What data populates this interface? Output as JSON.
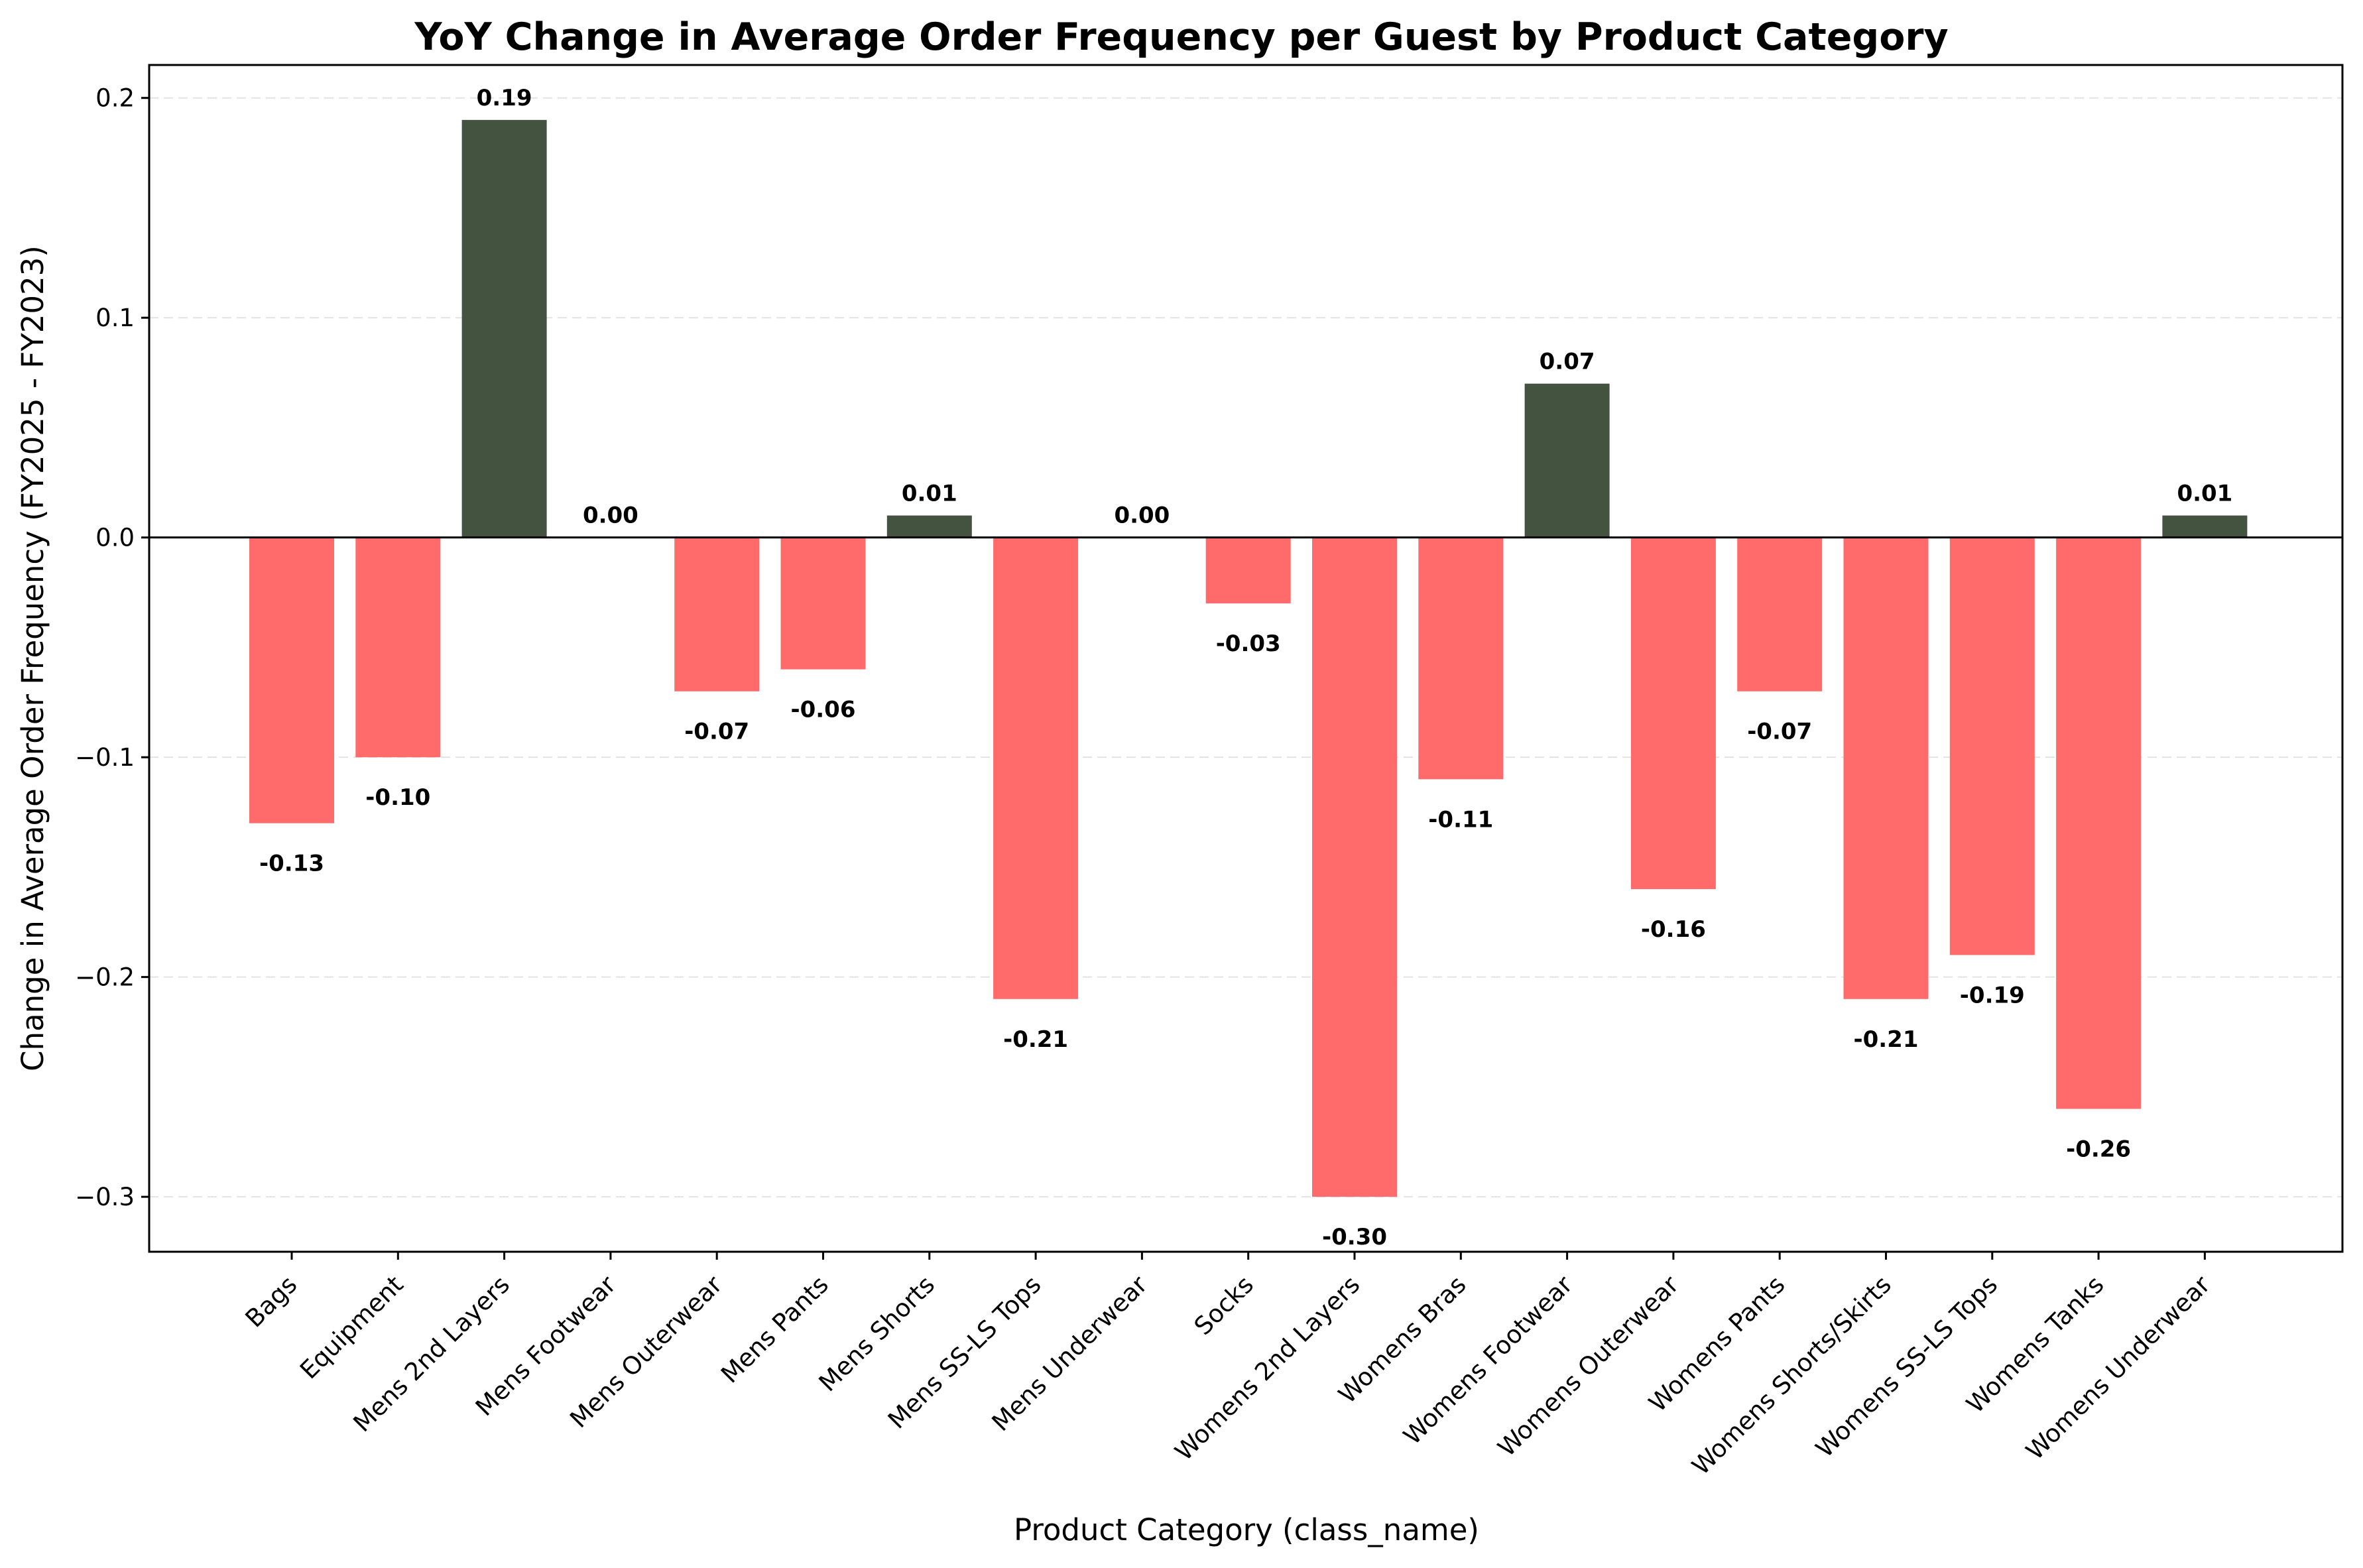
{
  "chart_data": {
    "type": "bar",
    "title": "YoY Change in Average Order Frequency per Guest by Product Category",
    "xlabel": "Product Category (class_name)",
    "ylabel": "Change in Average Order Frequency (FY2025 - FY2023)",
    "categories": [
      "Bags",
      "Equipment",
      "Mens 2nd Layers",
      "Mens Footwear",
      "Mens Outerwear",
      "Mens Pants",
      "Mens Shorts",
      "Mens SS-LS Tops",
      "Mens Underwear",
      "Socks",
      "Womens 2nd Layers",
      "Womens Bras",
      "Womens Footwear",
      "Womens Outerwear",
      "Womens Pants",
      "Womens Shorts/Skirts",
      "Womens SS-LS Tops",
      "Womens Tanks",
      "Womens Underwear"
    ],
    "values": [
      -0.13,
      -0.1,
      0.19,
      0.0,
      -0.07,
      -0.06,
      0.01,
      -0.21,
      0.0,
      -0.03,
      -0.3,
      -0.11,
      0.07,
      -0.16,
      -0.07,
      -0.21,
      -0.19,
      -0.26,
      0.01
    ],
    "value_labels": [
      "-0.13",
      "-0.10",
      "0.19",
      "0.00",
      "-0.07",
      "-0.06",
      "0.01",
      "-0.21",
      "0.00",
      "-0.03",
      "-0.30",
      "-0.11",
      "0.07",
      "-0.16",
      "-0.07",
      "-0.21",
      "-0.19",
      "-0.26",
      "0.01"
    ],
    "yticks": [
      0.2,
      0.1,
      0.0,
      -0.1,
      -0.2,
      -0.3
    ],
    "ytick_labels": [
      "0.2",
      "0.1",
      "0.0",
      "−0.1",
      "−0.2",
      "−0.3"
    ],
    "ylim": [
      -0.325,
      0.215
    ],
    "grid": "horizontal dashed",
    "colors": {
      "positive": "#435340",
      "negative": "#ff6b6b",
      "grid": "#e3e3e3",
      "zero_line": "#000000"
    }
  }
}
